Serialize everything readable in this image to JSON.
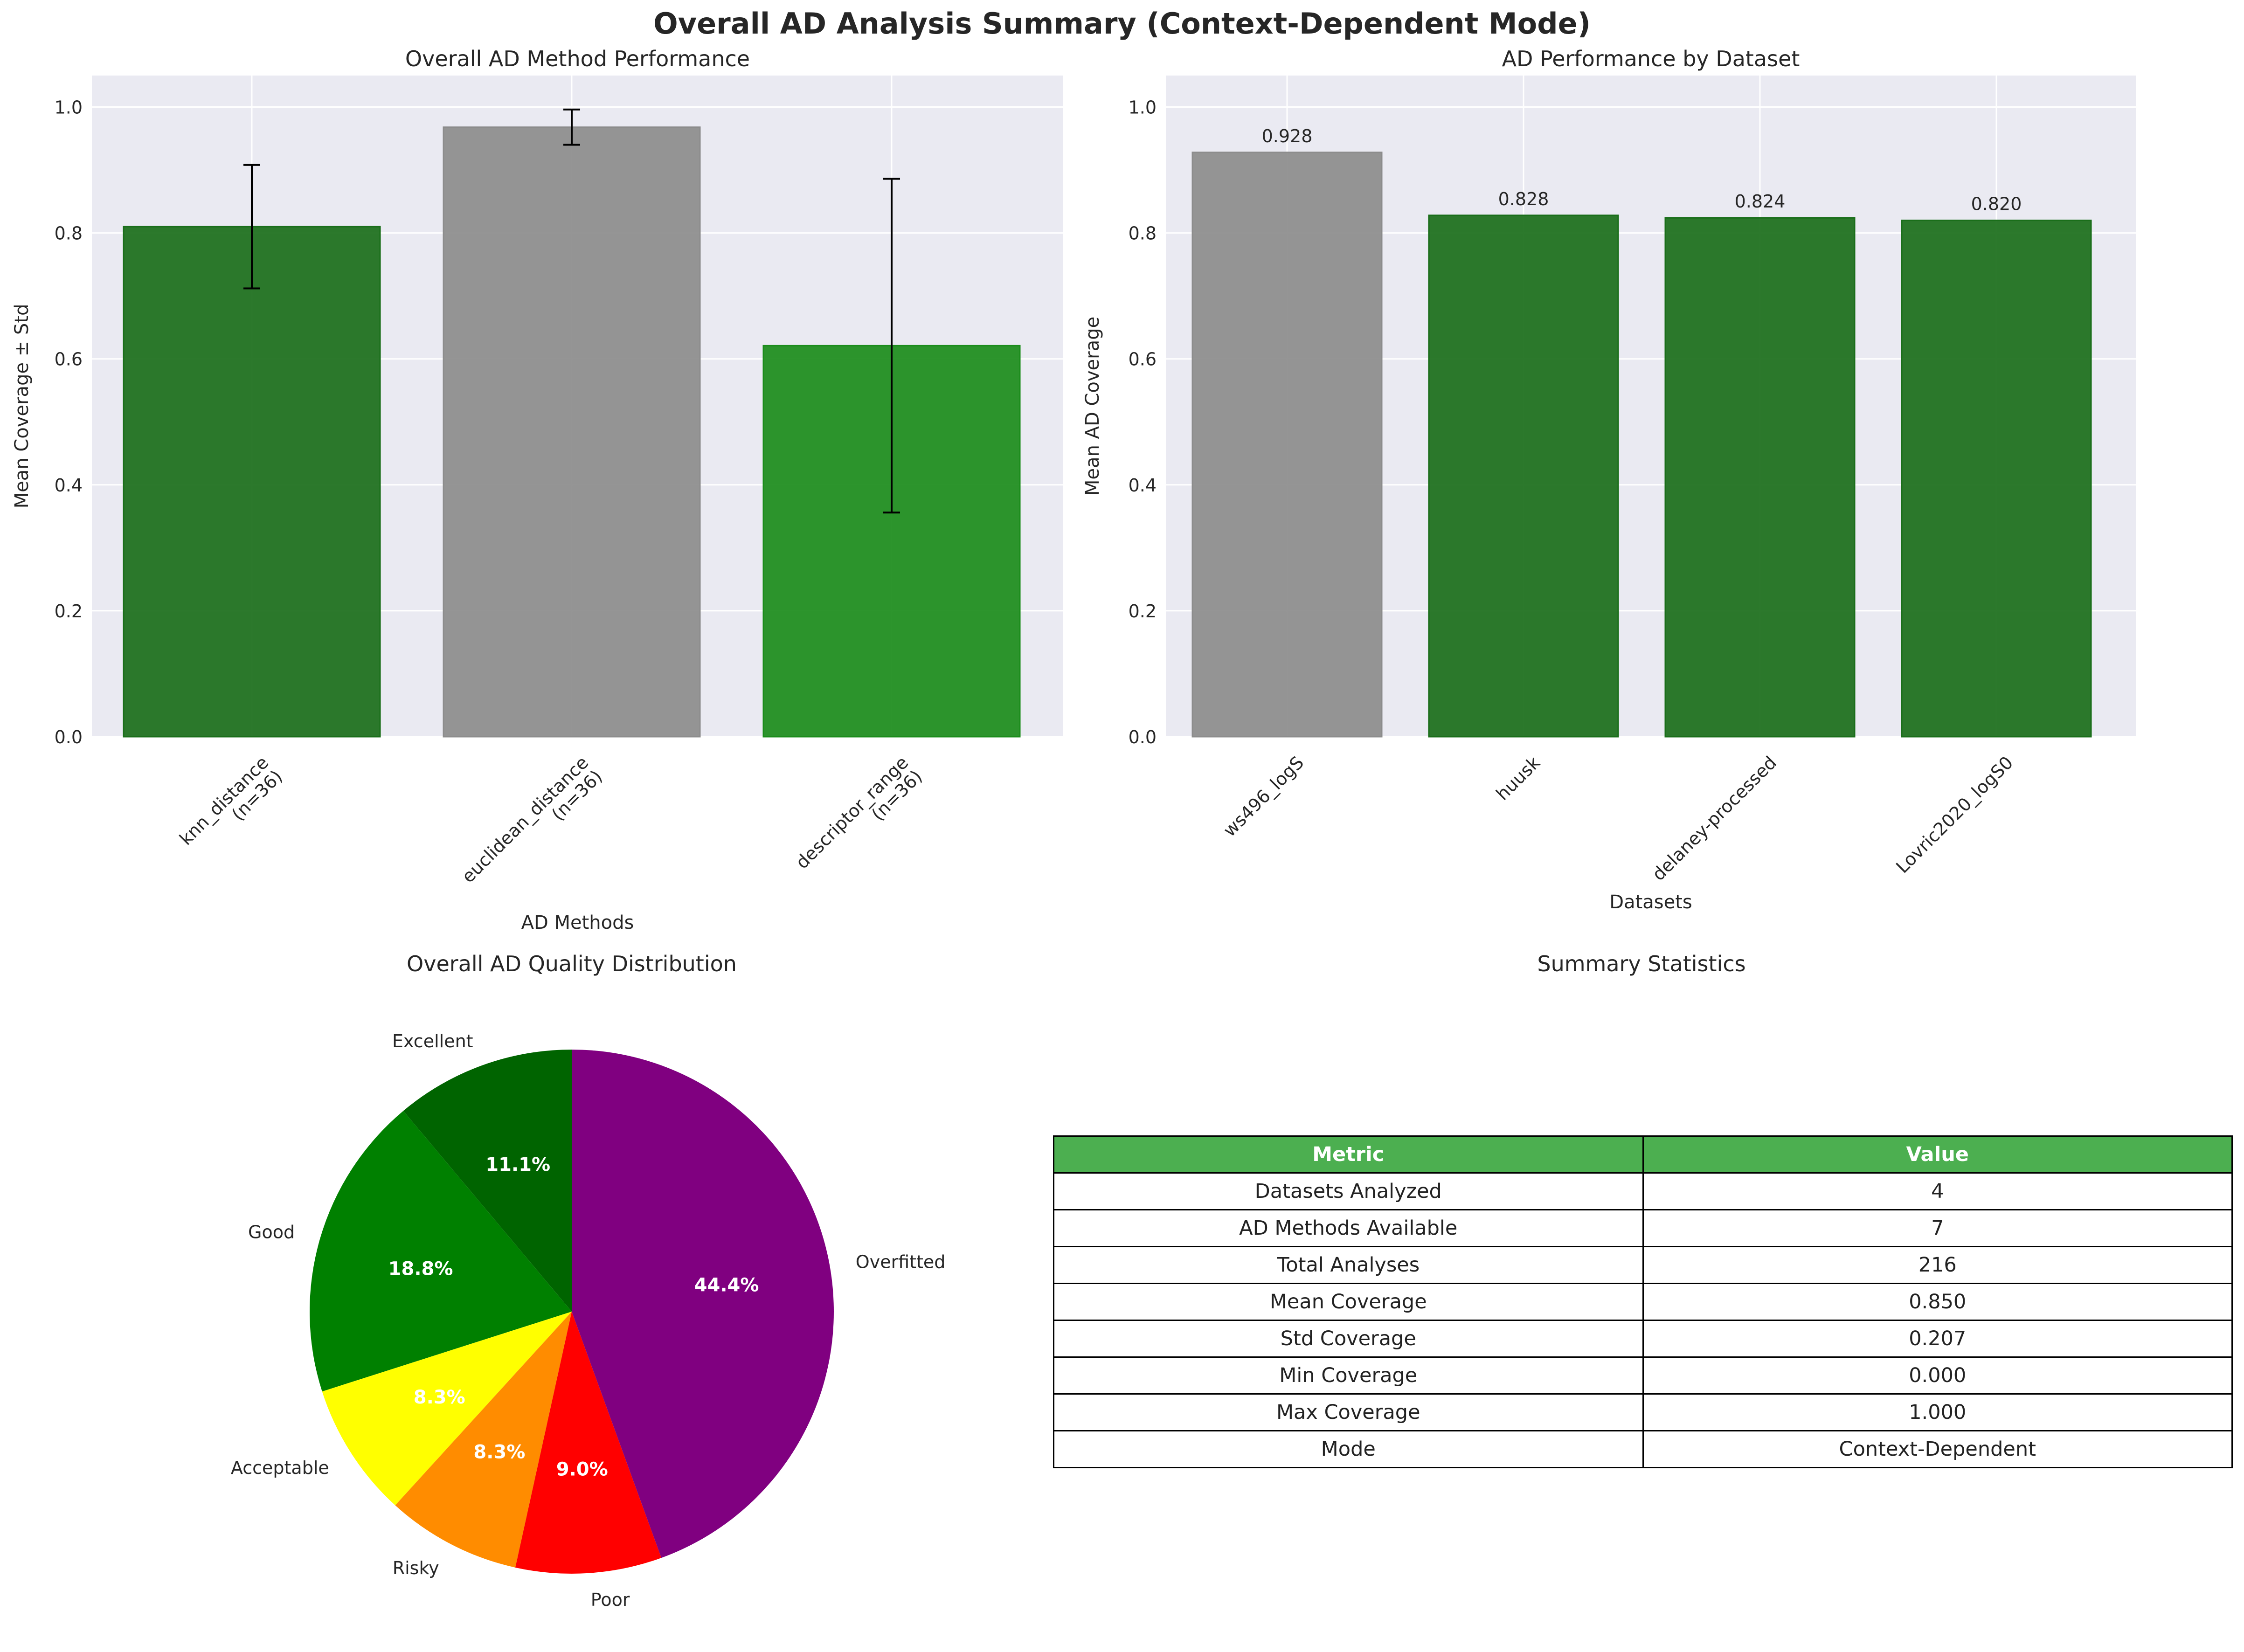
{
  "figure": {
    "title": "Overall AD Analysis Summary (Context-Dependent Mode)"
  },
  "chart_data": [
    {
      "type": "bar",
      "title": "Overall AD Method Performance",
      "xlabel": "AD Methods",
      "ylabel": "Mean Coverage ± Std",
      "categories": [
        "knn_distance\n(n=36)",
        "euclidean_distance\n(n=36)",
        "descriptor_range\n(n=36)"
      ],
      "values": [
        0.81,
        0.968,
        0.621
      ],
      "errors": [
        0.098,
        0.028,
        0.265
      ],
      "colors": [
        "#1a6e1a",
        "#8c8c8c",
        "#1b8c1b"
      ],
      "ylim": [
        0,
        1.05
      ],
      "yticks": [
        "0.0",
        "0.2",
        "0.4",
        "0.6",
        "0.8",
        "1.0"
      ],
      "grid": true
    },
    {
      "type": "bar",
      "title": "AD Performance by Dataset",
      "xlabel": "Datasets",
      "ylabel": "Mean AD Coverage",
      "categories": [
        "ws496_logS",
        "huusk",
        "delaney-processed",
        "Lovric2020_logS0"
      ],
      "values": [
        0.928,
        0.828,
        0.824,
        0.82
      ],
      "value_labels": [
        "0.928",
        "0.828",
        "0.824",
        "0.820"
      ],
      "colors": [
        "#8c8c8c",
        "#1a6e1a",
        "#1a6e1a",
        "#1a6e1a"
      ],
      "ylim": [
        0,
        1.05
      ],
      "yticks": [
        "0.0",
        "0.2",
        "0.4",
        "0.6",
        "0.8",
        "1.0"
      ],
      "grid": true
    },
    {
      "type": "pie",
      "title": "Overall AD Quality Distribution",
      "labels": [
        "Excellent",
        "Good",
        "Acceptable",
        "Risky",
        "Poor",
        "Overfitted"
      ],
      "values": [
        11.1,
        18.8,
        8.3,
        8.3,
        9.0,
        44.4
      ],
      "pct_labels": [
        "11.1%",
        "18.8%",
        "8.3%",
        "8.3%",
        "9.0%",
        "44.4%"
      ],
      "colors": [
        "#006400",
        "#008000",
        "#ffff00",
        "#ff8c00",
        "#ff0000",
        "#800080"
      ]
    }
  ],
  "table": {
    "title": "Summary Statistics",
    "headers": [
      "Metric",
      "Value"
    ],
    "rows": [
      [
        "Datasets Analyzed",
        "4"
      ],
      [
        "AD Methods Available",
        "7"
      ],
      [
        "Total Analyses",
        "216"
      ],
      [
        "Mean Coverage",
        "0.850"
      ],
      [
        "Std Coverage",
        "0.207"
      ],
      [
        "Min Coverage",
        "0.000"
      ],
      [
        "Max Coverage",
        "1.000"
      ],
      [
        "Mode",
        "Context-Dependent"
      ]
    ]
  }
}
